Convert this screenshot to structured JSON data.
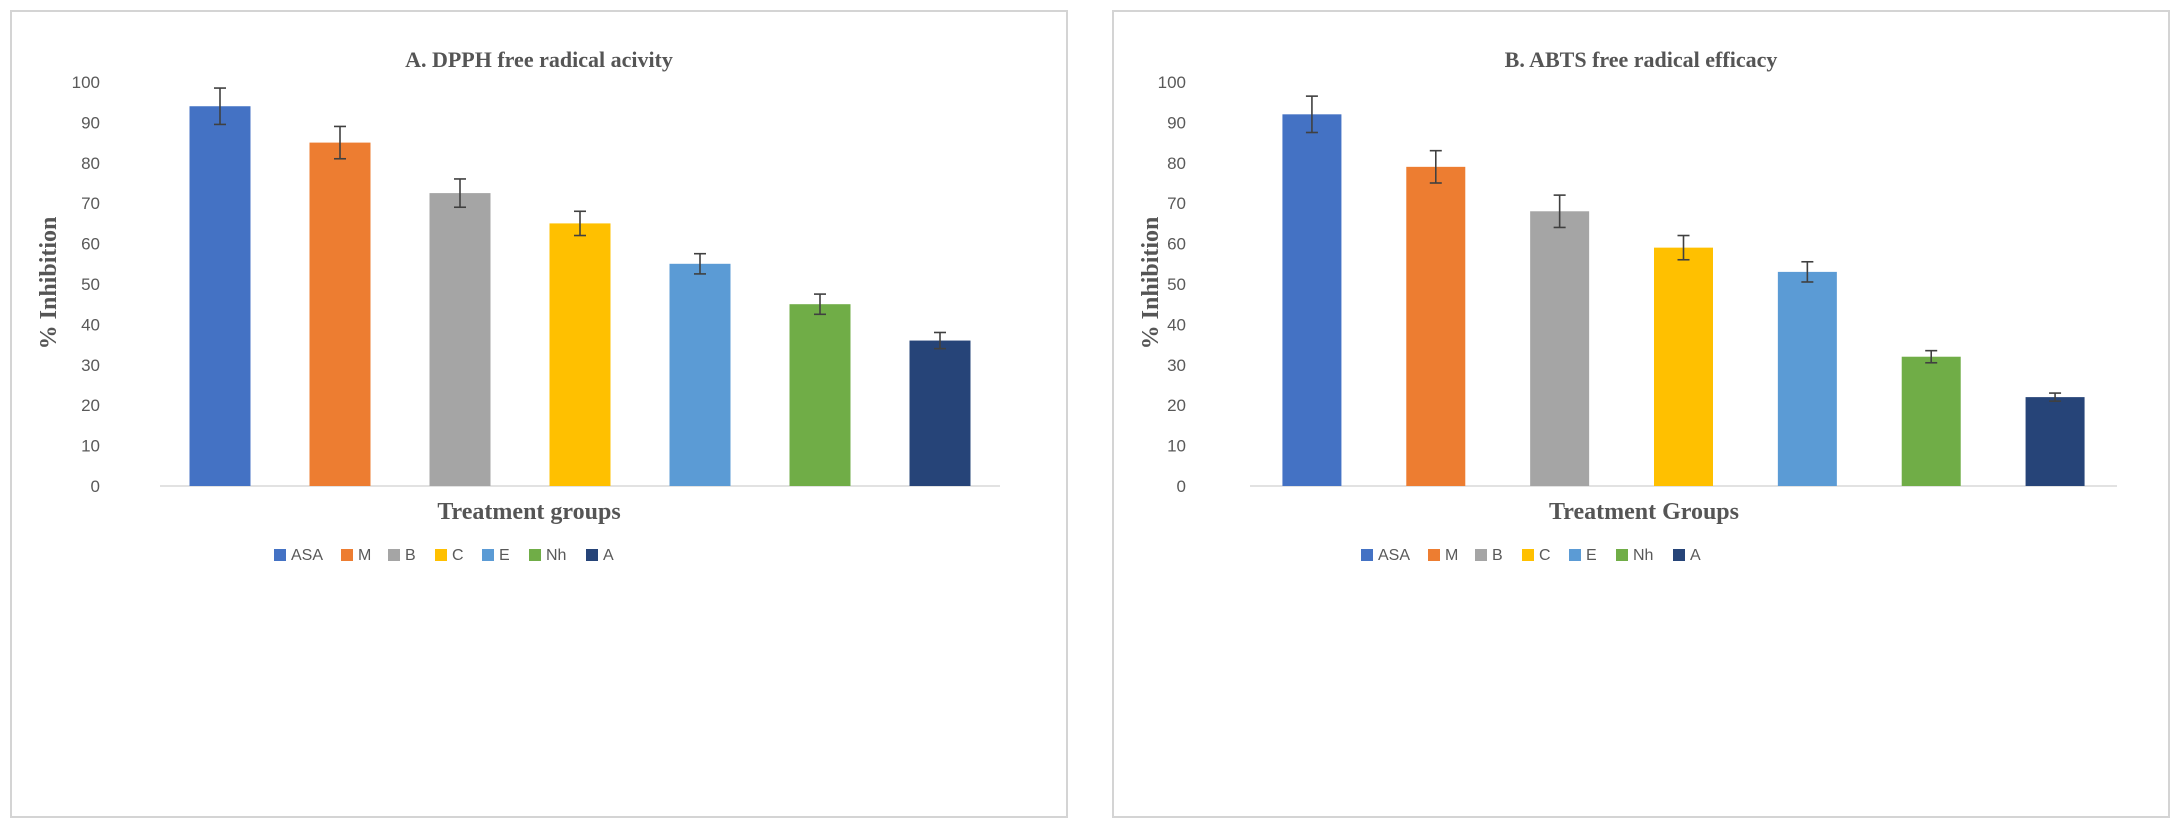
{
  "chart_data": [
    {
      "type": "bar",
      "title": "A. DPPH free radical acivity",
      "xlabel": "Treatment groups",
      "ylabel": "% Inhibition",
      "ylim": [
        0,
        100
      ],
      "yticks": [
        "0",
        "10",
        "20",
        "30",
        "40",
        "50",
        "60",
        "70",
        "80",
        "90",
        "100"
      ],
      "grid": false,
      "legend_position": "bottom",
      "categories": [
        "ASA",
        "M",
        "B",
        "C",
        "E",
        "Nh",
        "A"
      ],
      "values": [
        94,
        85,
        72.5,
        65,
        55,
        45,
        36
      ],
      "errors": [
        4.5,
        4,
        3.5,
        3,
        2.5,
        2.5,
        2
      ],
      "colors": [
        "#4472C4",
        "#ED7D31",
        "#A5A5A5",
        "#FFC000",
        "#5B9BD5",
        "#70AD47",
        "#264478"
      ]
    },
    {
      "type": "bar",
      "title": "B. ABTS free radical efficacy",
      "xlabel": "Treatment Groups",
      "ylabel": "% Inhibition",
      "ylim": [
        0,
        100
      ],
      "yticks": [
        "0",
        "10",
        "20",
        "30",
        "40",
        "50",
        "60",
        "70",
        "80",
        "90",
        "100"
      ],
      "grid": false,
      "legend_position": "bottom",
      "categories": [
        "ASA",
        "M",
        "B",
        "C",
        "E",
        "Nh",
        "A"
      ],
      "values": [
        92,
        79,
        68,
        59,
        53,
        32,
        22
      ],
      "errors": [
        4.5,
        4,
        4,
        3,
        2.5,
        1.5,
        1
      ],
      "colors": [
        "#4472C4",
        "#ED7D31",
        "#A5A5A5",
        "#FFC000",
        "#5B9BD5",
        "#70AD47",
        "#264478"
      ]
    }
  ]
}
